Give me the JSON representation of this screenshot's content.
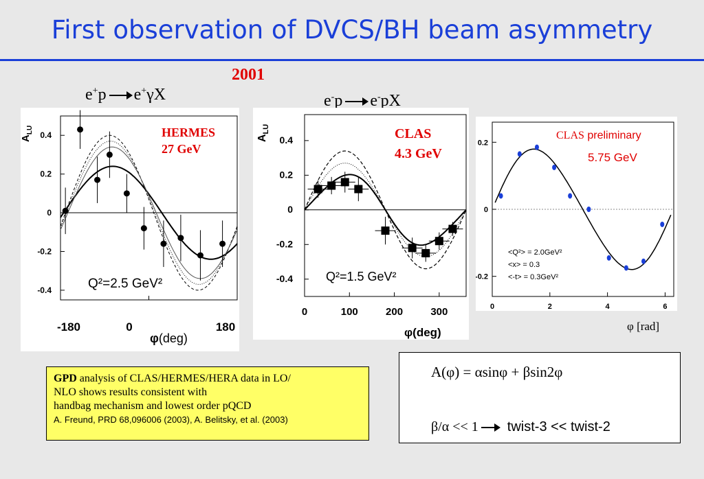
{
  "slide": {
    "title": "First observation of DVCS/BH beam asymmetry",
    "year": "2001",
    "reaction_hermes": {
      "a": "e",
      "a_sup": "+",
      "b": "p",
      "c": "e",
      "c_sup": "+",
      "d": "γX"
    },
    "reaction_clas": {
      "a": "e",
      "a_sup": "-",
      "b": "p",
      "c": "e",
      "c_sup": "-",
      "d": "pX"
    }
  },
  "chart_data": [
    {
      "type": "scatter",
      "label_line1": "HERMES",
      "label_line2": "27 GeV",
      "ylabel": "A",
      "ylabel_sub": "LU",
      "xlabel_sym": "φ",
      "xlabel_rest": "(deg)",
      "annotation": "Q²=2.5 GeV²",
      "xlim": [
        -180,
        180
      ],
      "ylim": [
        -0.45,
        0.5
      ],
      "yticks": [
        "0.4",
        "0.2",
        "0",
        "-0.2",
        "-0.4"
      ],
      "xticks": [
        "-180",
        "0",
        "180"
      ],
      "points": [
        {
          "x": -170,
          "y": 0.01,
          "err": 0.12
        },
        {
          "x": -140,
          "y": 0.43,
          "err": 0.1
        },
        {
          "x": -105,
          "y": 0.17,
          "err": 0.12
        },
        {
          "x": -80,
          "y": 0.3,
          "err": 0.12
        },
        {
          "x": -45,
          "y": 0.1,
          "err": 0.1
        },
        {
          "x": -10,
          "y": -0.08,
          "err": 0.11
        },
        {
          "x": 30,
          "y": -0.16,
          "err": 0.12
        },
        {
          "x": 65,
          "y": -0.13,
          "err": 0.12
        },
        {
          "x": 105,
          "y": -0.22,
          "err": 0.13
        },
        {
          "x": 150,
          "y": -0.16,
          "err": 0.12
        }
      ]
    },
    {
      "type": "scatter",
      "label_line1": "CLAS",
      "label_line2": "4.3 GeV",
      "ylabel": "A",
      "ylabel_sub": "LU",
      "xlabel_sym": "φ",
      "xlabel_rest": "(deg)",
      "annotation": "Q²=1.5 GeV²",
      "xlim": [
        0,
        360
      ],
      "ylim": [
        -0.5,
        0.55
      ],
      "yticks": [
        "0.4",
        "0.2",
        "0",
        "-0.2",
        "-0.4"
      ],
      "xticks": [
        "0",
        "100",
        "200",
        "300"
      ],
      "points": [
        {
          "x": 30,
          "y": 0.12,
          "err": 0.05
        },
        {
          "x": 60,
          "y": 0.14,
          "err": 0.05
        },
        {
          "x": 90,
          "y": 0.16,
          "err": 0.06
        },
        {
          "x": 120,
          "y": 0.12,
          "err": 0.07
        },
        {
          "x": 180,
          "y": -0.12,
          "err": 0.08
        },
        {
          "x": 240,
          "y": -0.22,
          "err": 0.06
        },
        {
          "x": 270,
          "y": -0.25,
          "err": 0.05
        },
        {
          "x": 300,
          "y": -0.18,
          "err": 0.05
        },
        {
          "x": 330,
          "y": -0.11,
          "err": 0.04
        }
      ]
    },
    {
      "type": "scatter",
      "label_line1": "CLAS",
      "label_line1_suffix": " preliminary",
      "label_line2": "5.75 GeV",
      "xlabel_sym": "φ",
      "xlabel_rest": "[rad]",
      "kinematics": [
        "<Q²> = 2.0GeV²",
        "<x>   = 0.3",
        "<-t>  = 0.3GeV²"
      ],
      "xlim": [
        0,
        6.3
      ],
      "ylim": [
        -0.26,
        0.26
      ],
      "yticks": [
        "0.2",
        "0",
        "-0.2"
      ],
      "xticks": [
        "0",
        "2",
        "4",
        "6"
      ],
      "points": [
        {
          "x": 0.3,
          "y": 0.04
        },
        {
          "x": 0.95,
          "y": 0.165
        },
        {
          "x": 1.55,
          "y": 0.185
        },
        {
          "x": 2.15,
          "y": 0.125
        },
        {
          "x": 2.7,
          "y": 0.04
        },
        {
          "x": 3.35,
          "y": 0.0
        },
        {
          "x": 4.05,
          "y": -0.145
        },
        {
          "x": 4.65,
          "y": -0.175
        },
        {
          "x": 5.25,
          "y": -0.155
        },
        {
          "x": 5.9,
          "y": -0.045
        }
      ]
    }
  ],
  "notes": {
    "gpd_bold": "GPD",
    "gpd_line1": " analysis of CLAS/HERMES/HERA data in LO/",
    "gpd_line2": "NLO shows results consistent with",
    "gpd_line3": "handbag mechanism and lowest order pQCD",
    "gpd_ref": "A. Freund, PRD 68,096006 (2003), A. Belitsky, et al. (2003)"
  },
  "formula": {
    "line1": "A(φ) = αsinφ + βsin2φ",
    "line2_left": "β/α << 1",
    "line2_right": "twist-3 << twist-2"
  }
}
